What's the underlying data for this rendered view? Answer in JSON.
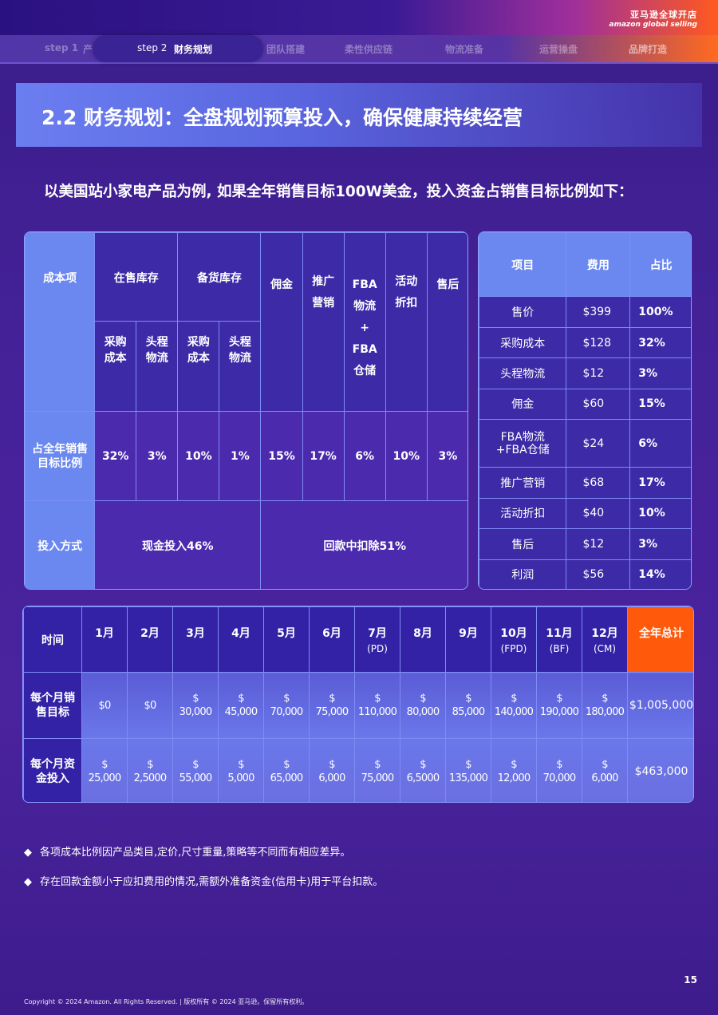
{
  "brand": {
    "cn": "亚马逊全球开店",
    "en": "amazon global selling"
  },
  "steps": {
    "s1_label": "step 1",
    "s1_text": "产",
    "active_step": "step 2",
    "active_text": "财务规划",
    "s3": "团队搭建",
    "s4": "柔性供应链",
    "s5": "物流准备",
    "s6": "运营操盘",
    "s7": "品牌打造"
  },
  "title": "2.2 财务规划：全盘规划预算投入，确保健康持续经营",
  "subtitle": "以美国站小家电产品为例, 如果全年销售目标100W美金，投入资金占销售目标比例如下：",
  "cost_table": {
    "row_label_item": "成本项",
    "in_stock": "在售库存",
    "backup_stock": "备货库存",
    "purchase": "采购成本",
    "first_leg": "头程物流",
    "commission": "佣金",
    "promo": "推广营销",
    "fba_line1": "FBA",
    "fba_line2": "物流",
    "fba_plus": "+",
    "fba_line3": "FBA",
    "fba_line4": "仓储",
    "discount": "活动折扣",
    "after_sales": "售后",
    "ratio_label": "占全年销售目标比例",
    "ratios": [
      "32%",
      "3%",
      "10%",
      "1%",
      "15%",
      "17%",
      "6%",
      "10%",
      "3%"
    ],
    "invest_label": "投入方式",
    "cash": "现金投入46%",
    "deduct": "回款中扣除51%"
  },
  "price_table": {
    "headers": [
      "项目",
      "费用",
      "占比"
    ],
    "rows": [
      [
        "售价",
        "$399",
        "100%"
      ],
      [
        "采购成本",
        "$128",
        "32%"
      ],
      [
        "头程物流",
        "$12",
        "3%"
      ],
      [
        "佣金",
        "$60",
        "15%"
      ],
      [
        "FBA物流+FBA仓储",
        "$24",
        "6%"
      ],
      [
        "推广营销",
        "$68",
        "17%"
      ],
      [
        "活动折扣",
        "$40",
        "10%"
      ],
      [
        "售后",
        "$12",
        "3%"
      ],
      [
        "利润",
        "$56",
        "14%"
      ]
    ]
  },
  "monthly": {
    "time_label": "时间",
    "months": [
      {
        "m": "1月",
        "s": ""
      },
      {
        "m": "2月",
        "s": ""
      },
      {
        "m": "3月",
        "s": ""
      },
      {
        "m": "4月",
        "s": ""
      },
      {
        "m": "5月",
        "s": ""
      },
      {
        "m": "6月",
        "s": ""
      },
      {
        "m": "7月",
        "s": "(PD)"
      },
      {
        "m": "8月",
        "s": ""
      },
      {
        "m": "9月",
        "s": ""
      },
      {
        "m": "10月",
        "s": "(FPD)"
      },
      {
        "m": "11月",
        "s": "(BF)"
      },
      {
        "m": "12月",
        "s": "(CM)"
      }
    ],
    "total_label": "全年总计",
    "sales_label": "每个月销售目标",
    "sales": [
      "$0",
      "$0",
      "$\n30,000",
      "$\n45,000",
      "$\n70,000",
      "$\n75,000",
      "$\n110,000",
      "$\n80,000",
      "$\n85,000",
      "$\n140,000",
      "$\n190,000",
      "$\n180,000"
    ],
    "sales_total": "$1,005,000",
    "invest_label": "每个月资金投入",
    "invest": [
      "$\n25,000",
      "$\n2,5000",
      "$\n55,000",
      "$\n5,000",
      "$\n65,000",
      "$\n6,000",
      "$\n75,000",
      "$\n6,5000",
      "$\n135,000",
      "$\n12,000",
      "$\n70,000",
      "$\n6,000"
    ],
    "invest_total": "$463,000"
  },
  "notes": [
    "各项成本比例因产品类目,定价,尺寸重量,策略等不同而有相应差异。",
    "存在回款金额小于应扣费用的情况,需额外准备资金(信用卡)用于平台扣款。"
  ],
  "note_bullet": "◆",
  "page_number": "15",
  "copyright": "Copyright © 2024 Amazon. All Rights Reserved.  |  版权所有 © 2024 亚马逊。保留所有权利。"
}
